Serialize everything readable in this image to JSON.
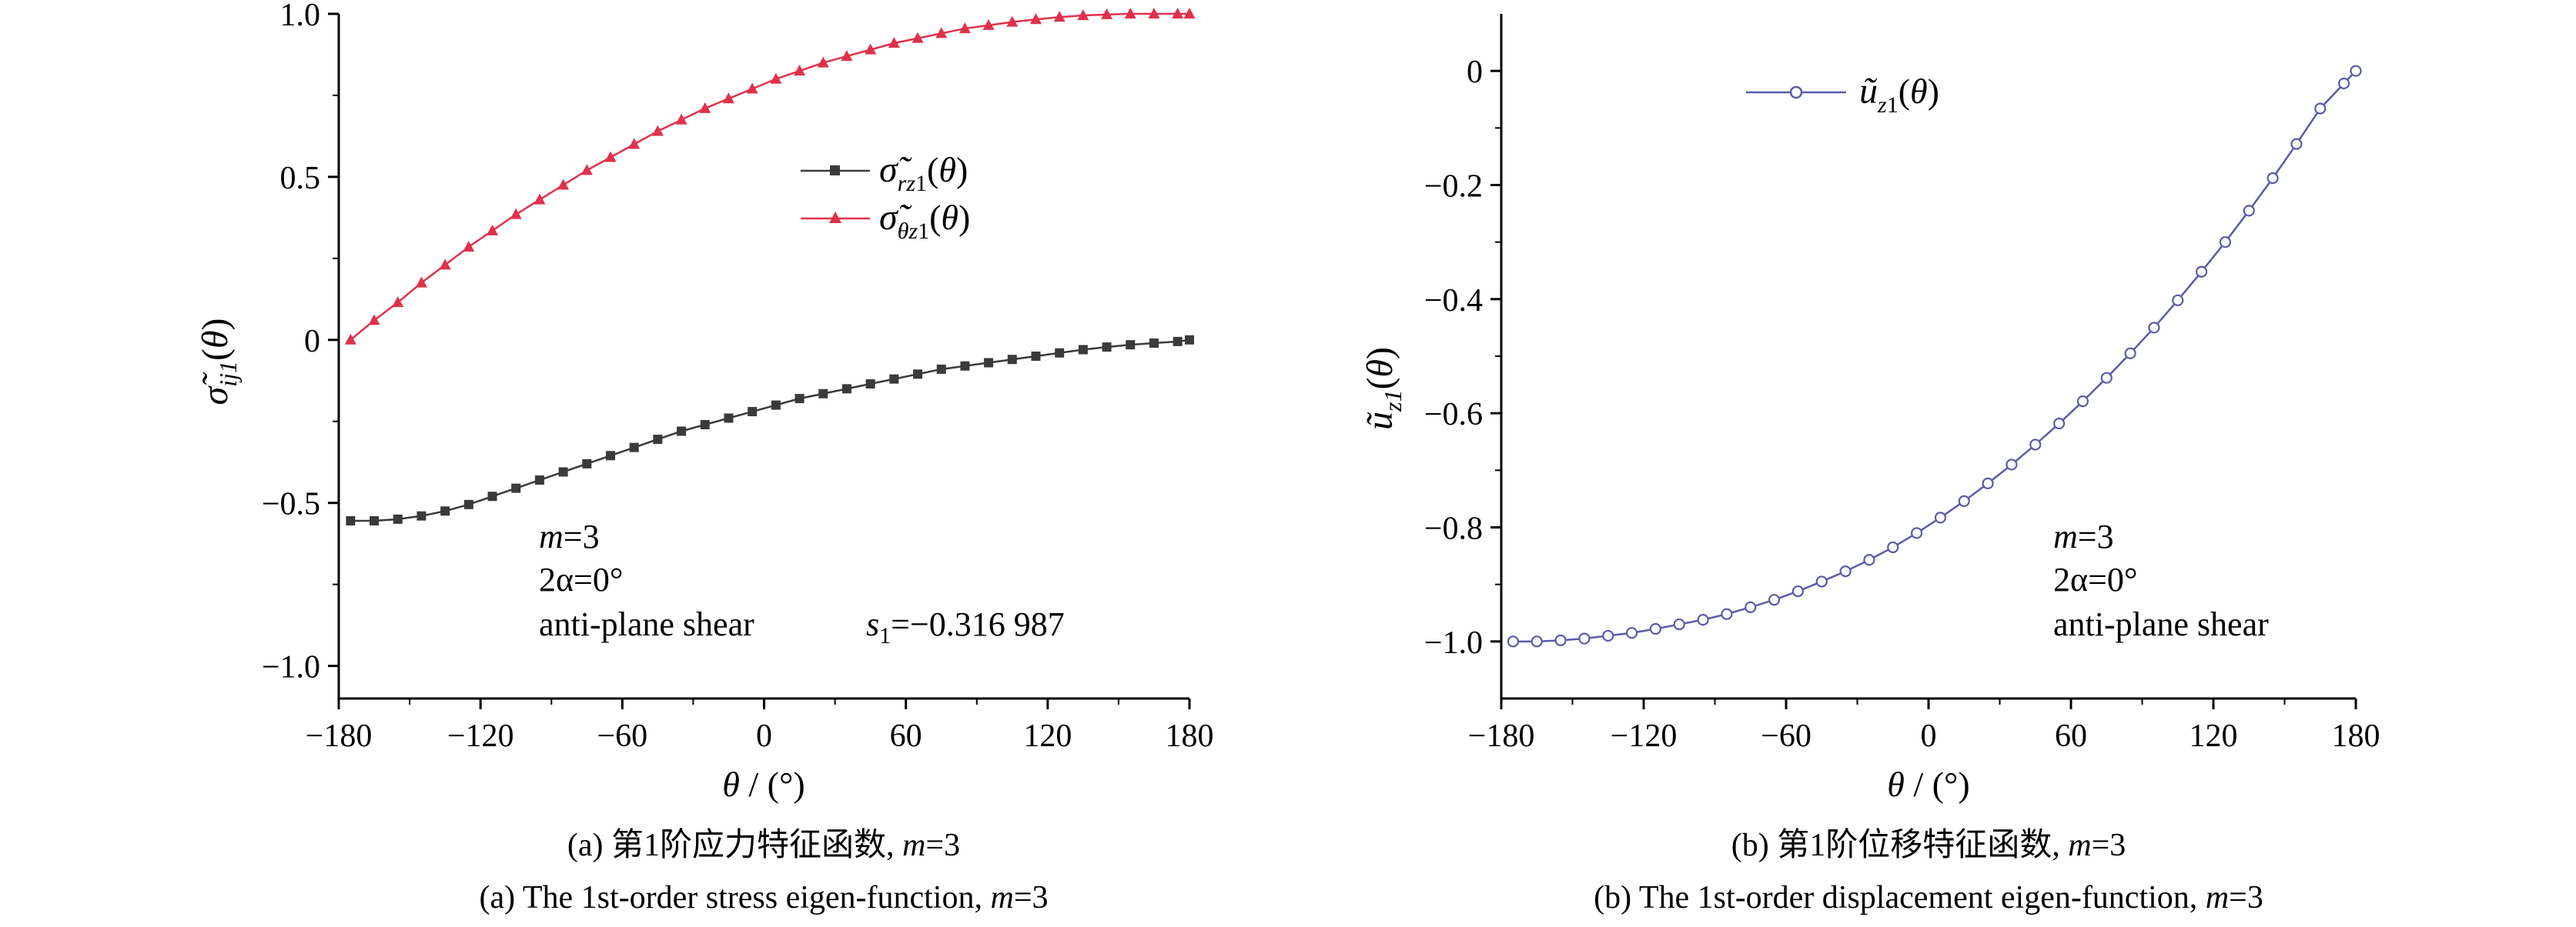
{
  "chart_data": [
    {
      "id": "a",
      "type": "line",
      "ylabel": "σ̃ij1(θ)",
      "xlabel": "θ / (°)",
      "xlim": [
        -180,
        180
      ],
      "ylim": [
        -1.1,
        1.0
      ],
      "x_ticks": [
        "-180",
        "-120",
        "-60",
        "0",
        "60",
        "120",
        "180"
      ],
      "y_ticks": [
        "-1.0",
        "-0.5",
        "0",
        "0.5",
        "1.0"
      ],
      "legend_position": "center",
      "series": [
        {
          "name": "σ̃rz1(θ)",
          "color": "#3a3a3a",
          "marker": "square",
          "x": [
            -175,
            -165,
            -155,
            -145,
            -135,
            -125,
            -115,
            -105,
            -95,
            -85,
            -75,
            -65,
            -55,
            -45,
            -35,
            -25,
            -15,
            -5,
            5,
            15,
            25,
            35,
            45,
            55,
            65,
            75,
            85,
            95,
            105,
            115,
            125,
            135,
            145,
            155,
            165,
            175,
            180
          ],
          "y": [
            -0.555,
            -0.555,
            -0.55,
            -0.54,
            -0.525,
            -0.505,
            -0.48,
            -0.455,
            -0.43,
            -0.405,
            -0.38,
            -0.355,
            -0.33,
            -0.305,
            -0.28,
            -0.26,
            -0.24,
            -0.22,
            -0.2,
            -0.18,
            -0.165,
            -0.15,
            -0.135,
            -0.12,
            -0.105,
            -0.09,
            -0.08,
            -0.07,
            -0.06,
            -0.05,
            -0.04,
            -0.03,
            -0.022,
            -0.015,
            -0.01,
            -0.005,
            0
          ]
        },
        {
          "name": "σ̃θz1(θ)",
          "color": "#e0314b",
          "marker": "triangle",
          "x": [
            -175,
            -165,
            -155,
            -145,
            -135,
            -125,
            -115,
            -105,
            -95,
            -85,
            -75,
            -65,
            -55,
            -45,
            -35,
            -25,
            -15,
            -5,
            5,
            15,
            25,
            35,
            45,
            55,
            65,
            75,
            85,
            95,
            105,
            115,
            125,
            135,
            145,
            155,
            165,
            175,
            180
          ],
          "y": [
            0,
            0.06,
            0.115,
            0.175,
            0.23,
            0.285,
            0.335,
            0.385,
            0.43,
            0.475,
            0.52,
            0.56,
            0.6,
            0.64,
            0.675,
            0.71,
            0.74,
            0.77,
            0.8,
            0.825,
            0.85,
            0.87,
            0.89,
            0.91,
            0.925,
            0.94,
            0.955,
            0.965,
            0.975,
            0.983,
            0.99,
            0.995,
            0.998,
            1.0,
            1.0,
            1.0,
            1.0
          ]
        }
      ],
      "annotations": {
        "m_label": "m",
        "m_value": "=3",
        "alpha_label": "2α=0°",
        "shear_label": "anti-plane shear",
        "s_label": "s",
        "s_sub": "1",
        "s_value": "=−0.316 987"
      },
      "caption_cn_prefix": "(a) 第1阶应力特征函数, ",
      "caption_en_prefix": "(a) The 1st-order stress eigen-function, ",
      "caption_m": "m",
      "caption_m_value": "=3"
    },
    {
      "id": "b",
      "type": "line",
      "ylabel": "ũz1(θ)",
      "xlabel": "θ / (°)",
      "xlim": [
        -180,
        180
      ],
      "ylim": [
        -1.1,
        0.1
      ],
      "x_ticks": [
        "-180",
        "-120",
        "-60",
        "0",
        "60",
        "120",
        "180"
      ],
      "y_ticks": [
        "-1.0",
        "-0.8",
        "-0.6",
        "-0.4",
        "-0.2",
        "0"
      ],
      "legend_position": "top-left",
      "series": [
        {
          "name": "ũz1(θ)",
          "color": "#5b5ba8",
          "marker": "circle",
          "x": [
            -175,
            -165,
            -155,
            -145,
            -135,
            -125,
            -115,
            -105,
            -95,
            -85,
            -75,
            -65,
            -55,
            -45,
            -35,
            -25,
            -15,
            -5,
            5,
            15,
            25,
            35,
            45,
            55,
            65,
            75,
            85,
            95,
            105,
            115,
            125,
            135,
            145,
            155,
            165,
            175,
            180
          ],
          "y": [
            -1.0,
            -1.0,
            -0.998,
            -0.995,
            -0.99,
            -0.985,
            -0.978,
            -0.97,
            -0.962,
            -0.952,
            -0.94,
            -0.927,
            -0.912,
            -0.895,
            -0.877,
            -0.857,
            -0.835,
            -0.81,
            -0.783,
            -0.754,
            -0.723,
            -0.69,
            -0.655,
            -0.618,
            -0.579,
            -0.538,
            -0.495,
            -0.45,
            -0.402,
            -0.352,
            -0.3,
            -0.245,
            -0.188,
            -0.128,
            -0.066,
            -0.022,
            0
          ]
        }
      ],
      "annotations": {
        "m_label": "m",
        "m_value": "=3",
        "alpha_label": "2α=0°",
        "shear_label": "anti-plane shear"
      },
      "caption_cn_prefix": "(b) 第1阶位移特征函数, ",
      "caption_en_prefix": "(b) The 1st-order displacement eigen-function, ",
      "caption_m": "m",
      "caption_m_value": "=3"
    }
  ]
}
